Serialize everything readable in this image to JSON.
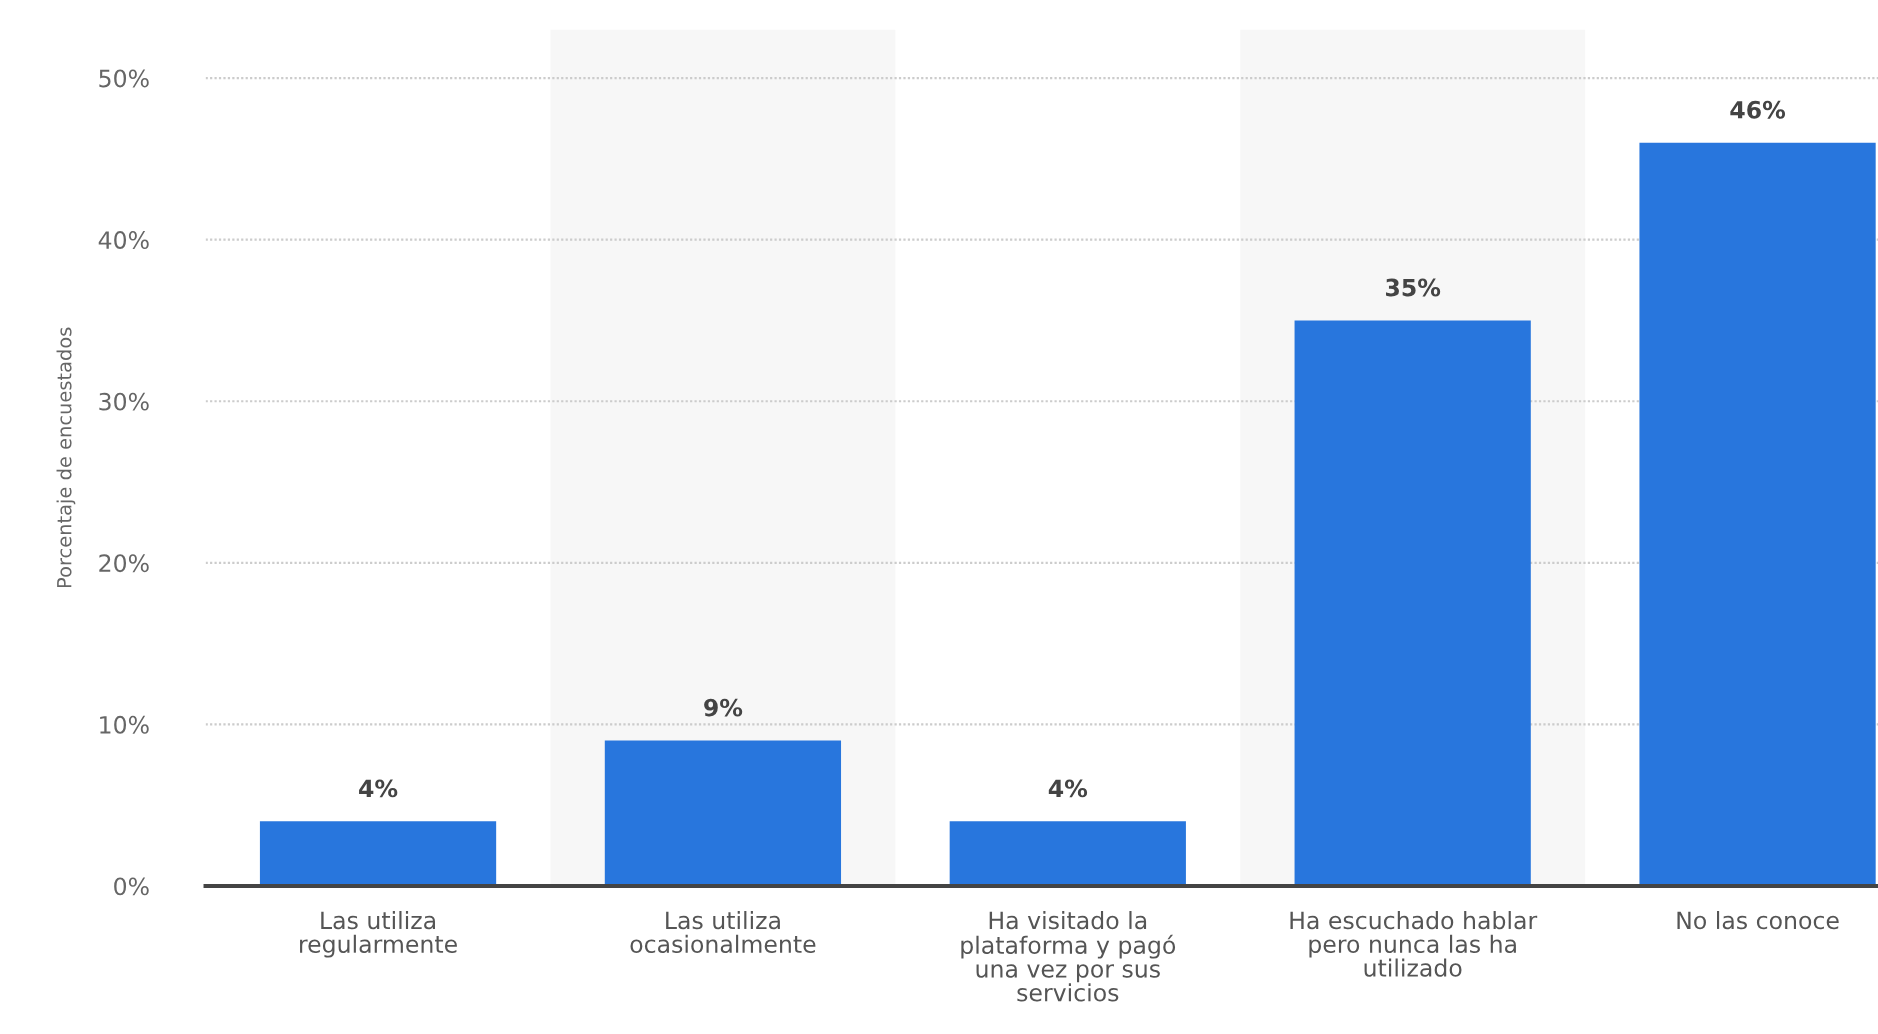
{
  "chart_data": {
    "type": "bar",
    "ylabel": "Porcentaje de encuestados",
    "categories": [
      "Las utiliza\nregularmente",
      "Las utiliza\nocasionalmente",
      "Ha visitado la\nplataforma y pagó\nuna vez por sus\nservicios",
      "Ha escuchado hablar\npero nunca las ha\nutilizado",
      "No las conoce"
    ],
    "values": [
      4,
      9,
      4,
      35,
      46
    ],
    "color": "#2876dd",
    "value_labels": [
      "4%",
      "9%",
      "4%",
      "35%",
      "46%"
    ],
    "ylim": [
      0,
      53
    ],
    "yticks": [
      {
        "value": 0,
        "label": "0%"
      },
      {
        "value": 10,
        "label": "10%"
      },
      {
        "value": 20,
        "label": "20%"
      },
      {
        "value": 30,
        "label": "30%"
      },
      {
        "value": 40,
        "label": "40%"
      },
      {
        "value": 50,
        "label": "50%"
      }
    ],
    "grid": "y",
    "bands": [
      {
        "axis": "x",
        "from": "Las utiliza\nocasionalmente",
        "to": "Las utiliza\nocasionalmente",
        "color": "#f7f7f7"
      },
      {
        "axis": "x",
        "from": "Ha escuchado hablar\npero nunca las ha\nutilizado",
        "to": "Ha escuchado hablar\npero nunca las ha\nutilizado",
        "color": "#f7f7f7"
      }
    ]
  }
}
